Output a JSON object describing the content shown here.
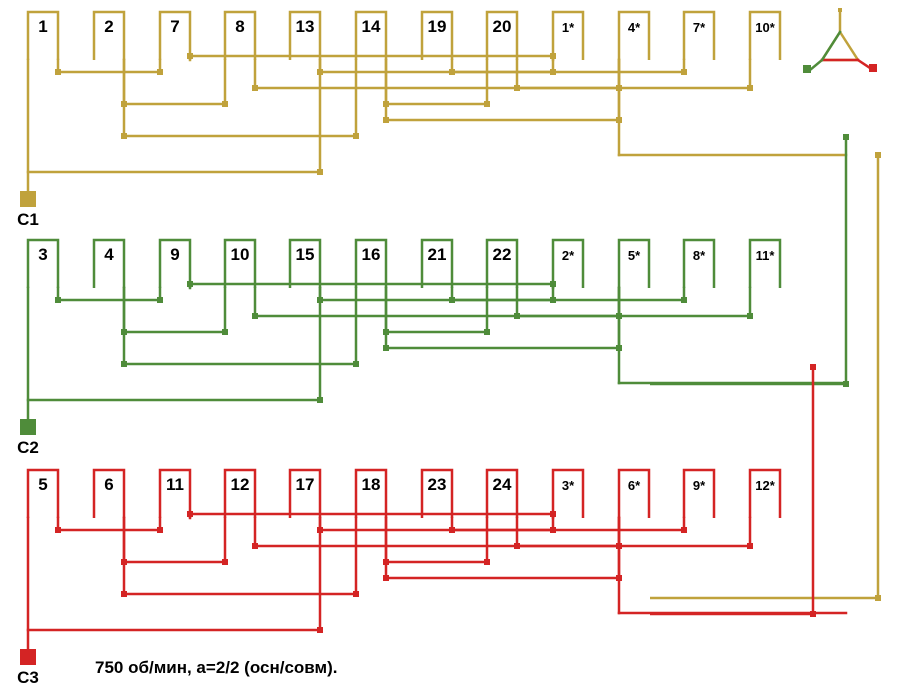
{
  "colors": {
    "phase1": "#c0a23c",
    "phase2": "#4f8c3a",
    "phase3": "#d42424",
    "text": "#000000",
    "background": "#ffffff"
  },
  "groups": [
    {
      "id": "c1",
      "terminal": "C1",
      "color_key": "phase1",
      "coils": [
        "1",
        "2",
        "7",
        "8",
        "13",
        "14",
        "19",
        "20",
        "1*",
        "4*",
        "7*",
        "10*"
      ]
    },
    {
      "id": "c2",
      "terminal": "C2",
      "color_key": "phase2",
      "coils": [
        "3",
        "4",
        "9",
        "10",
        "15",
        "16",
        "21",
        "22",
        "2*",
        "5*",
        "8*",
        "11*"
      ]
    },
    {
      "id": "c3",
      "terminal": "C3",
      "color_key": "phase3",
      "coils": [
        "5",
        "6",
        "11",
        "12",
        "17",
        "18",
        "23",
        "24",
        "3*",
        "6*",
        "9*",
        "12*"
      ]
    }
  ],
  "caption": "750 об/мин, а=2/2 (осн/совм).",
  "symbol": {
    "name": "star-connection-icon"
  }
}
